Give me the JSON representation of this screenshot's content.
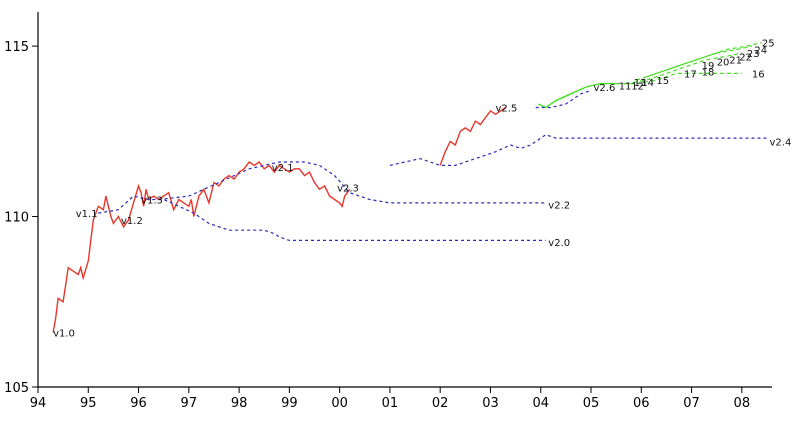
{
  "chart_data": {
    "type": "line",
    "title": "",
    "xlabel": "",
    "ylabel": "",
    "xlim": [
      1994.0,
      2008.6
    ],
    "ylim": [
      105,
      116
    ],
    "grid": false,
    "legend": "none",
    "x_ticks": [
      {
        "value": 1994,
        "label": "94"
      },
      {
        "value": 1995,
        "label": "95"
      },
      {
        "value": 1996,
        "label": "96"
      },
      {
        "value": 1997,
        "label": "97"
      },
      {
        "value": 1998,
        "label": "98"
      },
      {
        "value": 1999,
        "label": "99"
      },
      {
        "value": 2000,
        "label": "00"
      },
      {
        "value": 2001,
        "label": "01"
      },
      {
        "value": 2002,
        "label": "02"
      },
      {
        "value": 2003,
        "label": "03"
      },
      {
        "value": 2004,
        "label": "04"
      },
      {
        "value": 2005,
        "label": "05"
      },
      {
        "value": 2006,
        "label": "06"
      },
      {
        "value": 2007,
        "label": "07"
      },
      {
        "value": 2008,
        "label": "08"
      }
    ],
    "y_ticks": [
      {
        "value": 105,
        "label": "105"
      },
      {
        "value": 110,
        "label": "110"
      },
      {
        "value": 115,
        "label": "115"
      }
    ],
    "colors": {
      "actual": "#e8362b",
      "forecast": "#2b2bb8",
      "recent": "#44dd22"
    },
    "series": [
      {
        "kind": "actual",
        "points": [
          [
            1994.3,
            106.6
          ],
          [
            1994.35,
            107.0
          ],
          [
            1994.4,
            107.6
          ],
          [
            1994.5,
            107.5
          ],
          [
            1994.55,
            108.0
          ],
          [
            1994.6,
            108.5
          ],
          [
            1994.7,
            108.4
          ],
          [
            1994.8,
            108.3
          ],
          [
            1994.85,
            108.5
          ],
          [
            1994.9,
            108.2
          ],
          [
            1995.0,
            108.7
          ],
          [
            1995.05,
            109.3
          ],
          [
            1995.1,
            109.9
          ],
          [
            1995.2,
            110.3
          ],
          [
            1995.3,
            110.2
          ],
          [
            1995.35,
            110.6
          ],
          [
            1995.4,
            110.3
          ],
          [
            1995.45,
            110.0
          ],
          [
            1995.5,
            109.8
          ],
          [
            1995.6,
            110.0
          ],
          [
            1995.7,
            109.7
          ],
          [
            1995.8,
            109.9
          ],
          [
            1995.9,
            110.4
          ],
          [
            1996.0,
            110.9
          ],
          [
            1996.05,
            110.7
          ],
          [
            1996.1,
            110.3
          ],
          [
            1996.15,
            110.8
          ],
          [
            1996.2,
            110.5
          ],
          [
            1996.3,
            110.6
          ],
          [
            1996.4,
            110.5
          ],
          [
            1996.5,
            110.6
          ],
          [
            1996.6,
            110.7
          ],
          [
            1996.7,
            110.2
          ],
          [
            1996.8,
            110.5
          ],
          [
            1996.9,
            110.4
          ],
          [
            1997.0,
            110.3
          ],
          [
            1997.05,
            110.5
          ],
          [
            1997.1,
            110.0
          ],
          [
            1997.2,
            110.6
          ],
          [
            1997.3,
            110.8
          ],
          [
            1997.4,
            110.4
          ],
          [
            1997.5,
            111.0
          ],
          [
            1997.6,
            110.9
          ],
          [
            1997.7,
            111.1
          ],
          [
            1997.8,
            111.2
          ],
          [
            1997.9,
            111.1
          ],
          [
            1998.0,
            111.3
          ],
          [
            1998.1,
            111.4
          ],
          [
            1998.2,
            111.6
          ],
          [
            1998.3,
            111.5
          ],
          [
            1998.4,
            111.6
          ],
          [
            1998.5,
            111.4
          ],
          [
            1998.6,
            111.5
          ],
          [
            1998.7,
            111.3
          ],
          [
            1998.8,
            111.5
          ],
          [
            1998.9,
            111.4
          ],
          [
            1999.0,
            111.3
          ],
          [
            1999.1,
            111.4
          ],
          [
            1999.2,
            111.4
          ],
          [
            1999.3,
            111.2
          ],
          [
            1999.4,
            111.3
          ],
          [
            1999.5,
            111.0
          ],
          [
            1999.6,
            110.8
          ],
          [
            1999.7,
            110.9
          ],
          [
            1999.8,
            110.6
          ],
          [
            1999.9,
            110.5
          ],
          [
            2000.0,
            110.4
          ],
          [
            2000.05,
            110.3
          ],
          [
            2000.1,
            110.6
          ],
          [
            2000.2,
            110.8
          ]
        ]
      },
      {
        "kind": "actual",
        "points": [
          [
            2002.0,
            111.5
          ],
          [
            2002.1,
            111.9
          ],
          [
            2002.2,
            112.2
          ],
          [
            2002.3,
            112.1
          ],
          [
            2002.4,
            112.5
          ],
          [
            2002.5,
            112.6
          ],
          [
            2002.6,
            112.5
          ],
          [
            2002.7,
            112.8
          ],
          [
            2002.8,
            112.7
          ],
          [
            2002.9,
            112.9
          ],
          [
            2003.0,
            113.1
          ],
          [
            2003.1,
            113.0
          ],
          [
            2003.2,
            113.1
          ],
          [
            2003.3,
            113.2
          ]
        ]
      },
      {
        "kind": "recent",
        "points": [
          [
            2003.95,
            113.3
          ],
          [
            2004.1,
            113.2
          ],
          [
            2004.3,
            113.4
          ],
          [
            2004.6,
            113.6
          ],
          [
            2004.9,
            113.8
          ],
          [
            2005.2,
            113.9
          ],
          [
            2005.5,
            113.9
          ]
        ]
      },
      {
        "kind": "forecast",
        "points": [
          [
            1995.2,
            110.1
          ],
          [
            1995.6,
            110.2
          ],
          [
            1995.9,
            110.6
          ],
          [
            1996.2,
            110.5
          ],
          [
            1996.5,
            110.5
          ],
          [
            1996.8,
            110.3
          ],
          [
            1997.1,
            110.1
          ],
          [
            1997.4,
            109.8
          ],
          [
            1997.8,
            109.6
          ],
          [
            1998.2,
            109.6
          ],
          [
            1998.5,
            109.6
          ],
          [
            1998.7,
            109.5
          ],
          [
            1998.8,
            109.4
          ],
          [
            1999.0,
            109.3
          ],
          [
            2000.0,
            109.3
          ],
          [
            2002.0,
            109.3
          ],
          [
            2004.1,
            109.3
          ]
        ]
      },
      {
        "kind": "forecast",
        "points": [
          [
            1996.4,
            110.5
          ],
          [
            1997.0,
            110.6
          ],
          [
            1997.6,
            111.0
          ],
          [
            1998.2,
            111.4
          ],
          [
            1998.8,
            111.6
          ],
          [
            1999.3,
            111.6
          ],
          [
            1999.6,
            111.5
          ],
          [
            1999.9,
            111.2
          ],
          [
            2000.2,
            110.7
          ],
          [
            2000.6,
            110.5
          ],
          [
            2001.0,
            110.4
          ],
          [
            2002.0,
            110.4
          ],
          [
            2003.0,
            110.4
          ],
          [
            2004.1,
            110.4
          ]
        ]
      },
      {
        "kind": "forecast",
        "points": [
          [
            2001.0,
            111.5
          ],
          [
            2001.3,
            111.6
          ],
          [
            2001.6,
            111.7
          ],
          [
            2001.8,
            111.6
          ],
          [
            2002.0,
            111.5
          ],
          [
            2002.3,
            111.5
          ],
          [
            2002.7,
            111.7
          ],
          [
            2003.1,
            111.9
          ],
          [
            2003.4,
            112.1
          ],
          [
            2003.6,
            112.0
          ],
          [
            2003.8,
            112.1
          ],
          [
            2004.1,
            112.4
          ],
          [
            2004.3,
            112.3
          ],
          [
            2005.0,
            112.3
          ],
          [
            2006.0,
            112.3
          ],
          [
            2007.0,
            112.3
          ],
          [
            2008.5,
            112.3
          ]
        ]
      },
      {
        "kind": "forecast",
        "points": [
          [
            2003.9,
            113.2
          ],
          [
            2004.2,
            113.2
          ],
          [
            2004.5,
            113.3
          ],
          [
            2004.8,
            113.6
          ],
          [
            2005.0,
            113.7
          ]
        ]
      },
      {
        "kind": "recent_dash",
        "points": [
          [
            2005.5,
            113.9
          ],
          [
            2005.9,
            113.9
          ],
          [
            2006.3,
            114.0
          ],
          [
            2006.7,
            114.2
          ],
          [
            2007.0,
            114.2
          ],
          [
            2007.5,
            114.2
          ],
          [
            2008.0,
            114.2
          ]
        ]
      },
      {
        "kind": "recent_dash",
        "points": [
          [
            2005.7,
            113.9
          ],
          [
            2006.1,
            114.0
          ],
          [
            2006.5,
            114.2
          ],
          [
            2006.9,
            114.4
          ],
          [
            2007.3,
            114.6
          ],
          [
            2007.7,
            114.7
          ],
          [
            2008.0,
            114.8
          ]
        ]
      },
      {
        "kind": "recent_dash",
        "points": [
          [
            2005.9,
            114.0
          ],
          [
            2006.3,
            114.2
          ],
          [
            2006.7,
            114.4
          ],
          [
            2007.1,
            114.6
          ],
          [
            2007.5,
            114.8
          ],
          [
            2007.9,
            114.9
          ],
          [
            2008.2,
            115.0
          ]
        ]
      },
      {
        "kind": "recent_dash",
        "points": [
          [
            2006.1,
            114.1
          ],
          [
            2006.5,
            114.3
          ],
          [
            2006.9,
            114.5
          ],
          [
            2007.3,
            114.7
          ],
          [
            2007.7,
            114.9
          ],
          [
            2008.1,
            115.0
          ],
          [
            2008.4,
            115.1
          ]
        ]
      }
    ],
    "annotations": [
      {
        "text": "v1.0",
        "x": 1994.3,
        "y": 106.6
      },
      {
        "text": "v1.1",
        "x": 1994.75,
        "y": 110.1
      },
      {
        "text": "v1.2",
        "x": 1995.65,
        "y": 109.9
      },
      {
        "text": "v1.3",
        "x": 1996.05,
        "y": 110.5
      },
      {
        "text": "v2.0",
        "x": 2004.15,
        "y": 109.25
      },
      {
        "text": "v2.1",
        "x": 1998.65,
        "y": 111.45
      },
      {
        "text": "v2.2",
        "x": 2004.15,
        "y": 110.35
      },
      {
        "text": "v2.3",
        "x": 1999.95,
        "y": 110.85
      },
      {
        "text": "v2.4",
        "x": 2008.55,
        "y": 112.2
      },
      {
        "text": "v2.5",
        "x": 2003.1,
        "y": 113.2
      },
      {
        "text": "v2.6",
        "x": 2005.05,
        "y": 113.8
      },
      {
        "text": "11",
        "x": 2005.55,
        "y": 113.85
      },
      {
        "text": "12",
        "x": 2005.8,
        "y": 113.85
      },
      {
        "text": "13",
        "x": 2005.85,
        "y": 113.95
      },
      {
        "text": "14",
        "x": 2006.0,
        "y": 113.95
      },
      {
        "text": "15",
        "x": 2006.3,
        "y": 114.0
      },
      {
        "text": "16",
        "x": 2008.2,
        "y": 114.2
      },
      {
        "text": "17",
        "x": 2006.85,
        "y": 114.2
      },
      {
        "text": "18",
        "x": 2007.2,
        "y": 114.25
      },
      {
        "text": "19",
        "x": 2007.2,
        "y": 114.45
      },
      {
        "text": "20",
        "x": 2007.5,
        "y": 114.55
      },
      {
        "text": "21",
        "x": 2007.75,
        "y": 114.6
      },
      {
        "text": "22",
        "x": 2007.95,
        "y": 114.7
      },
      {
        "text": "23",
        "x": 2008.1,
        "y": 114.8
      },
      {
        "text": "24",
        "x": 2008.25,
        "y": 114.9
      },
      {
        "text": "25",
        "x": 2008.4,
        "y": 115.1
      }
    ]
  }
}
